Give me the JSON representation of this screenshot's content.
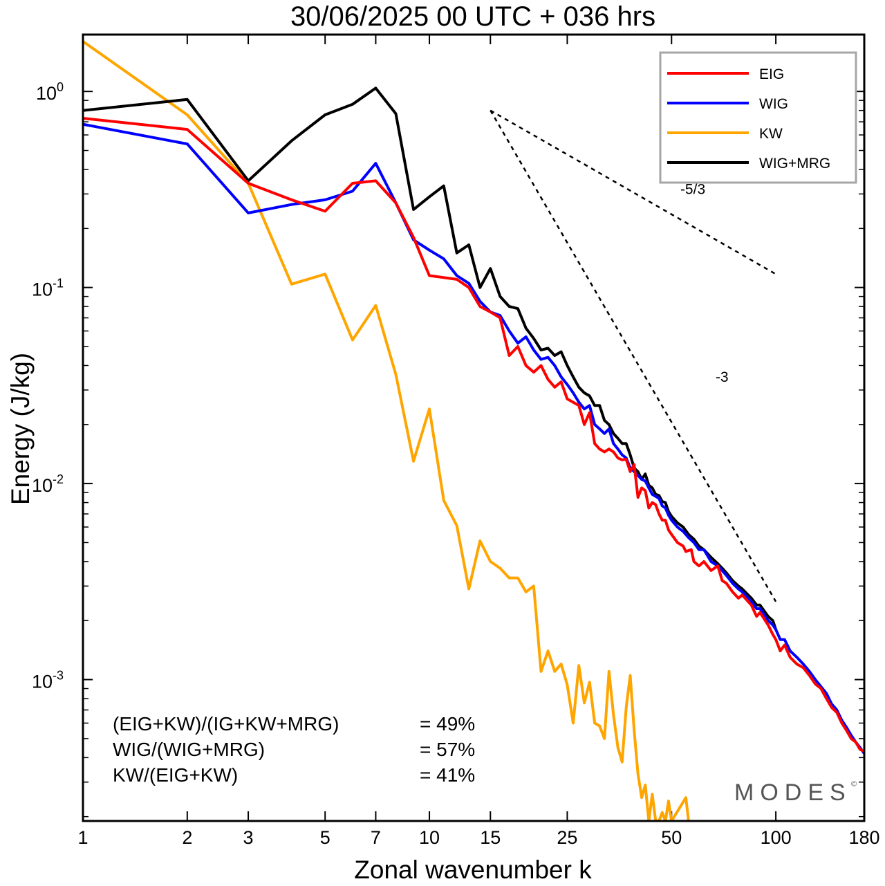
{
  "chart_data": {
    "type": "line",
    "title": "30/06/2025  00 UTC  + 036 hrs",
    "xlabel": "Zonal wavenumber k",
    "ylabel": "Energy (J/kg)",
    "xscale": "log",
    "yscale": "log",
    "xlim": [
      1,
      180
    ],
    "ylim": [
      0.00019,
      1.95
    ],
    "x_ticks": [
      1,
      2,
      3,
      5,
      7,
      10,
      15,
      25,
      50,
      100,
      180
    ],
    "x_tick_labels": [
      "1",
      "2",
      "3",
      "5",
      "7",
      "10",
      "15",
      "25",
      "50",
      "100",
      "180"
    ],
    "y_ticks": [
      {
        "value": 1,
        "base": "10",
        "exp": "0"
      },
      {
        "value": 0.1,
        "base": "10",
        "exp": "-1"
      },
      {
        "value": 0.01,
        "base": "10",
        "exp": "-2"
      },
      {
        "value": 0.001,
        "base": "10",
        "exp": "-3"
      }
    ],
    "legend_position": "top-right",
    "series": [
      {
        "name": "EIG",
        "color": "#ff0000",
        "points": [
          [
            1,
            0.73
          ],
          [
            2,
            0.64
          ],
          [
            3,
            0.34
          ],
          [
            4,
            0.28
          ],
          [
            5,
            0.245
          ],
          [
            6,
            0.34
          ],
          [
            7,
            0.35
          ],
          [
            8,
            0.27
          ],
          [
            9,
            0.18
          ],
          [
            10,
            0.115
          ],
          [
            12,
            0.11
          ],
          [
            13,
            0.1
          ],
          [
            14,
            0.08
          ],
          [
            15,
            0.075
          ],
          [
            16,
            0.07
          ],
          [
            17,
            0.045
          ],
          [
            18,
            0.05
          ],
          [
            19,
            0.04
          ],
          [
            20,
            0.037
          ],
          [
            21,
            0.04
          ],
          [
            22,
            0.034
          ],
          [
            23,
            0.031
          ],
          [
            24,
            0.033
          ],
          [
            25,
            0.027
          ],
          [
            27,
            0.025
          ],
          [
            28,
            0.02
          ],
          [
            29,
            0.023
          ],
          [
            30,
            0.016
          ],
          [
            31,
            0.015
          ],
          [
            32,
            0.0145
          ],
          [
            33,
            0.015
          ],
          [
            34,
            0.0145
          ],
          [
            35,
            0.0135
          ],
          [
            36,
            0.0132
          ],
          [
            37,
            0.0133
          ],
          [
            38,
            0.0115
          ],
          [
            39,
            0.0125
          ],
          [
            40,
            0.0085
          ],
          [
            41,
            0.0095
          ],
          [
            42,
            0.0092
          ],
          [
            43,
            0.0075
          ],
          [
            44,
            0.008
          ],
          [
            45,
            0.0078
          ],
          [
            46,
            0.007
          ],
          [
            47,
            0.0065
          ],
          [
            48,
            0.0065
          ],
          [
            49,
            0.0058
          ],
          [
            50,
            0.0055
          ],
          [
            52,
            0.005
          ],
          [
            54,
            0.0048
          ],
          [
            55,
            0.0045
          ],
          [
            57,
            0.0046
          ],
          [
            58,
            0.004
          ],
          [
            60,
            0.0038
          ],
          [
            62,
            0.004
          ],
          [
            65,
            0.0036
          ],
          [
            68,
            0.0038
          ],
          [
            70,
            0.0032
          ],
          [
            72,
            0.0031
          ],
          [
            75,
            0.0028
          ],
          [
            78,
            0.0026
          ],
          [
            80,
            0.0027
          ],
          [
            85,
            0.0024
          ],
          [
            88,
            0.0021
          ],
          [
            90,
            0.0022
          ],
          [
            95,
            0.0019
          ],
          [
            98,
            0.0017
          ],
          [
            100,
            0.0016
          ],
          [
            103,
            0.0014
          ],
          [
            106,
            0.0015
          ],
          [
            110,
            0.0013
          ],
          [
            115,
            0.0012
          ],
          [
            120,
            0.00115
          ],
          [
            125,
            0.00105
          ],
          [
            130,
            0.00095
          ],
          [
            135,
            0.0009
          ],
          [
            140,
            0.0008
          ],
          [
            145,
            0.00072
          ],
          [
            150,
            0.00068
          ],
          [
            155,
            0.0006
          ],
          [
            160,
            0.00055
          ],
          [
            165,
            0.0005
          ],
          [
            170,
            0.00048
          ],
          [
            175,
            0.00044
          ],
          [
            180,
            0.00043
          ]
        ]
      },
      {
        "name": "WIG",
        "color": "#0000ff",
        "points": [
          [
            1,
            0.68
          ],
          [
            2,
            0.54
          ],
          [
            3,
            0.24
          ],
          [
            4,
            0.265
          ],
          [
            5,
            0.28
          ],
          [
            6,
            0.31
          ],
          [
            7,
            0.43
          ],
          [
            8,
            0.27
          ],
          [
            9,
            0.175
          ],
          [
            10,
            0.155
          ],
          [
            11,
            0.14
          ],
          [
            12,
            0.115
          ],
          [
            13,
            0.105
          ],
          [
            14,
            0.085
          ],
          [
            15,
            0.075
          ],
          [
            16,
            0.072
          ],
          [
            17,
            0.06
          ],
          [
            18,
            0.052
          ],
          [
            19,
            0.056
          ],
          [
            20,
            0.048
          ],
          [
            21,
            0.043
          ],
          [
            22,
            0.044
          ],
          [
            23,
            0.04
          ],
          [
            24,
            0.035
          ],
          [
            25,
            0.032
          ],
          [
            26,
            0.029
          ],
          [
            27,
            0.026
          ],
          [
            28,
            0.024
          ],
          [
            29,
            0.025
          ],
          [
            30,
            0.02
          ],
          [
            31,
            0.019
          ],
          [
            32,
            0.018
          ],
          [
            33,
            0.019
          ],
          [
            34,
            0.016
          ],
          [
            35,
            0.015
          ],
          [
            36,
            0.014
          ],
          [
            37,
            0.0135
          ],
          [
            38,
            0.012
          ],
          [
            39,
            0.0115
          ],
          [
            40,
            0.011
          ],
          [
            41,
            0.0105
          ],
          [
            42,
            0.0103
          ],
          [
            43,
            0.0095
          ],
          [
            44,
            0.0088
          ],
          [
            45,
            0.0086
          ],
          [
            46,
            0.0084
          ],
          [
            47,
            0.0077
          ],
          [
            48,
            0.0075
          ],
          [
            49,
            0.0069
          ],
          [
            50,
            0.0065
          ],
          [
            52,
            0.006
          ],
          [
            54,
            0.0057
          ],
          [
            56,
            0.0053
          ],
          [
            58,
            0.005
          ],
          [
            60,
            0.0046
          ],
          [
            62,
            0.0046
          ],
          [
            65,
            0.004
          ],
          [
            68,
            0.0038
          ],
          [
            70,
            0.0036
          ],
          [
            72,
            0.0034
          ],
          [
            75,
            0.0031
          ],
          [
            78,
            0.0029
          ],
          [
            80,
            0.0028
          ],
          [
            85,
            0.0025
          ],
          [
            88,
            0.0023
          ],
          [
            90,
            0.0023
          ],
          [
            95,
            0.002
          ],
          [
            98,
            0.0019
          ],
          [
            100,
            0.0018
          ],
          [
            103,
            0.0016
          ],
          [
            106,
            0.0016
          ],
          [
            110,
            0.0014
          ],
          [
            115,
            0.0013
          ],
          [
            120,
            0.0012
          ],
          [
            125,
            0.0011
          ],
          [
            130,
            0.001
          ],
          [
            135,
            0.00092
          ],
          [
            140,
            0.00085
          ],
          [
            145,
            0.00075
          ],
          [
            150,
            0.0007
          ],
          [
            155,
            0.00062
          ],
          [
            160,
            0.00057
          ],
          [
            165,
            0.00052
          ],
          [
            170,
            0.00048
          ],
          [
            175,
            0.00045
          ],
          [
            180,
            0.00042
          ]
        ]
      },
      {
        "name": "KW",
        "color": "#ffa500",
        "points": [
          [
            1,
            1.8
          ],
          [
            2,
            0.76
          ],
          [
            3,
            0.34
          ],
          [
            4,
            0.104
          ],
          [
            5,
            0.117
          ],
          [
            6,
            0.054
          ],
          [
            7,
            0.081
          ],
          [
            8,
            0.036
          ],
          [
            9,
            0.013
          ],
          [
            10,
            0.024
          ],
          [
            11,
            0.0082
          ],
          [
            12,
            0.0061
          ],
          [
            13,
            0.0029
          ],
          [
            14,
            0.0051
          ],
          [
            15,
            0.004
          ],
          [
            16,
            0.0037
          ],
          [
            17,
            0.0033
          ],
          [
            18,
            0.0033
          ],
          [
            19,
            0.0028
          ],
          [
            20,
            0.003
          ],
          [
            21,
            0.0011
          ],
          [
            22,
            0.0014
          ],
          [
            23,
            0.0011
          ],
          [
            24,
            0.0012
          ],
          [
            25,
            0.00094
          ],
          [
            26,
            0.0006
          ],
          [
            27,
            0.00118
          ],
          [
            28,
            0.00076
          ],
          [
            29,
            0.00097
          ],
          [
            30,
            0.0006
          ],
          [
            31,
            0.00058
          ],
          [
            32,
            0.0005
          ],
          [
            33,
            0.0011
          ],
          [
            34,
            0.00066
          ],
          [
            35,
            0.00045
          ],
          [
            36,
            0.00038
          ],
          [
            37,
            0.00072
          ],
          [
            38,
            0.00105
          ],
          [
            39,
            0.00055
          ],
          [
            40,
            0.00033
          ],
          [
            41,
            0.00025
          ],
          [
            42,
            0.00029
          ],
          [
            43,
            0.00019
          ],
          [
            44,
            0.00026
          ],
          [
            45,
            0.00019
          ],
          [
            46,
            0.00019
          ],
          [
            47,
            0.00021
          ],
          [
            48,
            0.00019
          ],
          [
            49,
            0.00024
          ],
          [
            50,
            0.00019
          ],
          [
            55,
            0.00025
          ],
          [
            56,
            0.00019
          ]
        ]
      },
      {
        "name": "WIG+MRG",
        "color": "#000000",
        "points": [
          [
            1,
            0.8
          ],
          [
            2,
            0.91
          ],
          [
            3,
            0.35
          ],
          [
            4,
            0.56
          ],
          [
            5,
            0.76
          ],
          [
            6,
            0.86
          ],
          [
            7,
            1.04
          ],
          [
            8,
            0.77
          ],
          [
            9,
            0.25
          ],
          [
            10,
            0.29
          ],
          [
            11,
            0.33
          ],
          [
            12,
            0.15
          ],
          [
            13,
            0.165
          ],
          [
            14,
            0.1
          ],
          [
            15,
            0.125
          ],
          [
            16,
            0.09
          ],
          [
            17,
            0.08
          ],
          [
            18,
            0.078
          ],
          [
            19,
            0.062
          ],
          [
            20,
            0.055
          ],
          [
            21,
            0.048
          ],
          [
            22,
            0.049
          ],
          [
            23,
            0.045
          ],
          [
            24,
            0.047
          ],
          [
            25,
            0.04
          ],
          [
            26,
            0.035
          ],
          [
            27,
            0.031
          ],
          [
            28,
            0.029
          ],
          [
            29,
            0.028
          ],
          [
            30,
            0.025
          ],
          [
            31,
            0.025
          ],
          [
            32,
            0.021
          ],
          [
            33,
            0.02
          ],
          [
            34,
            0.018
          ],
          [
            35,
            0.017
          ],
          [
            36,
            0.016
          ],
          [
            37,
            0.016
          ],
          [
            38,
            0.014
          ],
          [
            39,
            0.012
          ],
          [
            40,
            0.0115
          ],
          [
            41,
            0.0105
          ],
          [
            42,
            0.0112
          ],
          [
            43,
            0.0098
          ],
          [
            44,
            0.0095
          ],
          [
            45,
            0.0088
          ],
          [
            46,
            0.0087
          ],
          [
            47,
            0.0081
          ],
          [
            48,
            0.008
          ],
          [
            49,
            0.0072
          ],
          [
            50,
            0.0068
          ],
          [
            52,
            0.0063
          ],
          [
            54,
            0.006
          ],
          [
            56,
            0.0055
          ],
          [
            58,
            0.0052
          ],
          [
            60,
            0.0048
          ],
          [
            62,
            0.0046
          ],
          [
            65,
            0.0042
          ],
          [
            68,
            0.0039
          ],
          [
            70,
            0.0037
          ],
          [
            72,
            0.0035
          ],
          [
            75,
            0.0032
          ],
          [
            78,
            0.003
          ],
          [
            80,
            0.0029
          ],
          [
            85,
            0.0026
          ],
          [
            88,
            0.0024
          ],
          [
            90,
            0.0024
          ],
          [
            95,
            0.0021
          ],
          [
            98,
            0.002
          ],
          [
            100,
            0.0018
          ]
        ]
      }
    ],
    "reference_lines": [
      {
        "label": "-5/3",
        "from": [
          15,
          0.8
        ],
        "to": [
          100,
          0.117
        ],
        "label_at": [
          53,
          0.3
        ]
      },
      {
        "label": "-3",
        "from": [
          15,
          0.8
        ],
        "to": [
          100,
          0.0025
        ],
        "label_at": [
          67,
          0.033
        ]
      }
    ],
    "annotations": [
      {
        "label": "(EIG+KW)/(IG+KW+MRG)",
        "value": "= 49%"
      },
      {
        "label": "WIG/(WIG+MRG)",
        "value": "= 57%"
      },
      {
        "label": "KW/(EIG+KW)",
        "value": "= 41%"
      }
    ],
    "watermark": "MODES",
    "watermark_mark": "©"
  }
}
